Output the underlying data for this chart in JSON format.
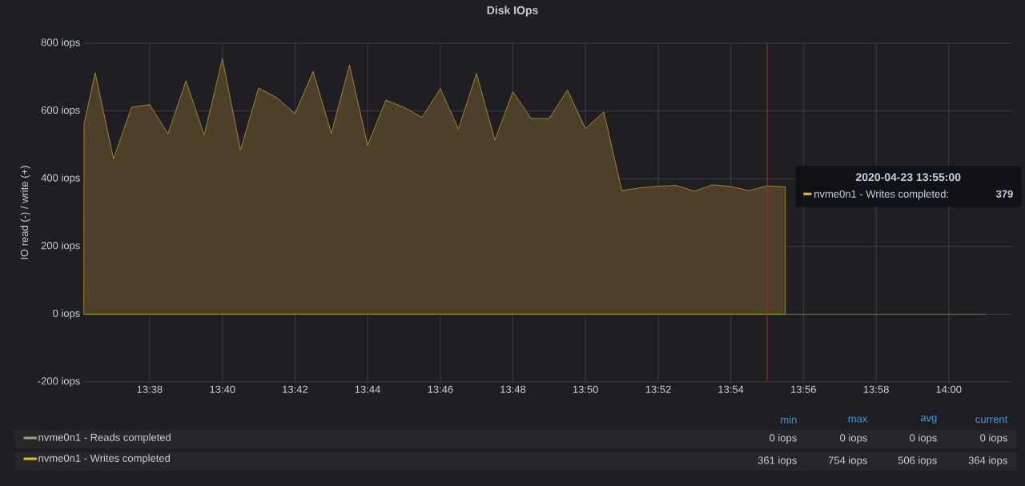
{
  "chart_data": {
    "type": "area",
    "title": "Disk IOps",
    "ylabel": "IO read (-) / write (+)",
    "x": [
      13.6032,
      13.6083,
      13.6167,
      13.625,
      13.6333,
      13.6417,
      13.65,
      13.6583,
      13.6667,
      13.675,
      13.6833,
      13.6917,
      13.7,
      13.7083,
      13.7167,
      13.725,
      13.7333,
      13.7417,
      13.75,
      13.7583,
      13.7667,
      13.775,
      13.7833,
      13.7917,
      13.8,
      13.8083,
      13.8167,
      13.825,
      13.8333,
      13.8417,
      13.85,
      13.8583,
      13.8667,
      13.875,
      13.8833,
      13.8917,
      13.9,
      13.9083,
      13.9167,
      13.925,
      13.9333,
      13.9417,
      13.95,
      13.9583,
      13.9667,
      13.975,
      13.9833,
      13.9917,
      14.0,
      14.0083,
      14.0167
    ],
    "series": [
      {
        "name": "nvme0n1 - Reads completed",
        "type": "line",
        "color": "#7eb26d",
        "values": [
          0,
          0,
          0,
          0,
          0,
          0,
          0,
          0,
          0,
          0,
          0,
          0,
          0,
          0,
          0,
          0,
          0,
          0,
          0,
          0,
          0,
          0,
          0,
          0,
          0,
          0,
          0,
          0,
          0,
          0,
          0,
          0,
          0,
          0,
          0,
          0,
          0,
          0,
          0,
          0,
          0,
          0,
          0,
          0,
          0,
          0,
          0,
          0,
          0,
          0,
          0
        ]
      },
      {
        "name": "nvme0n1 - Writes completed",
        "color": "#eab839",
        "values": [
          562,
          713,
          459,
          611,
          619,
          533,
          689,
          529,
          754,
          485,
          668,
          639,
          592,
          717,
          534,
          736,
          499,
          632,
          611,
          581,
          666,
          547,
          711,
          514,
          657,
          578,
          578,
          662,
          548,
          597,
          365,
          373,
          378,
          380,
          363,
          382,
          377,
          365,
          379,
          376,
          null,
          null,
          null,
          null,
          null,
          null,
          null,
          null,
          null,
          null,
          null
        ]
      }
    ],
    "xlim": [
      13.6032,
      14.0295
    ],
    "xticks": [
      {
        "value": 13.6333,
        "label": "13:38"
      },
      {
        "value": 13.6667,
        "label": "13:40"
      },
      {
        "value": 13.7,
        "label": "13:42"
      },
      {
        "value": 13.7333,
        "label": "13:44"
      },
      {
        "value": 13.7667,
        "label": "13:46"
      },
      {
        "value": 13.8,
        "label": "13:48"
      },
      {
        "value": 13.8333,
        "label": "13:50"
      },
      {
        "value": 13.8667,
        "label": "13:52"
      },
      {
        "value": 13.9,
        "label": "13:54"
      },
      {
        "value": 13.9333,
        "label": "13:56"
      },
      {
        "value": 13.9667,
        "label": "13:58"
      },
      {
        "value": 14.0,
        "label": "14:00"
      }
    ],
    "ylim": [
      -200,
      800
    ],
    "yticks": [
      {
        "value": -200,
        "label": "-200 iops"
      },
      {
        "value": 0,
        "label": "0 iops"
      },
      {
        "value": 200,
        "label": "200 iops"
      },
      {
        "value": 400,
        "label": "400 iops"
      },
      {
        "value": 600,
        "label": "600 iops"
      },
      {
        "value": 800,
        "label": "800 iops"
      }
    ],
    "ref_lines": [
      {
        "axis": "x",
        "value": 13.9167,
        "color": "#a52a2a"
      }
    ],
    "annotations": [
      "2020-04-23 13:55:00",
      "nvme0n1 - Writes completed:",
      "379",
      "min",
      "max",
      "avg",
      "current",
      "0 iops",
      "0 iops",
      "0 iops",
      "0 iops",
      "361 iops",
      "754 iops",
      "506 iops",
      "364 iops"
    ],
    "grid": true,
    "legend": "bottom"
  }
}
